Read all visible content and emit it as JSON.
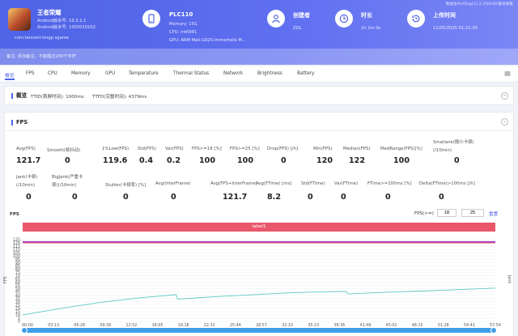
{
  "header": {
    "top_note": "数据由PerfDog(11.2.250430)版本收集",
    "app": {
      "name": "王者荣耀",
      "android_version_line": "Android版本号: 10.3.1.1",
      "android_build_line": "Android版本号: 1003010102",
      "package": "com.tencent.tmgp.sgame"
    },
    "device": {
      "model": "PLC110",
      "memory": "Memory: 15G",
      "cpu": "CPU: mt6991",
      "gpu": "GPU: ARM Mali-G925-Immortalis M..."
    },
    "creator": {
      "label": "创建者",
      "value": "ZOL"
    },
    "duration": {
      "label": "时长",
      "value": "1h 1m 0s"
    },
    "upload": {
      "label": "上传时间",
      "value": "11/05/2025 01:22:30"
    },
    "remark": "备注: 添加备注，不能超过200个字符"
  },
  "tabs": [
    {
      "label": "概览",
      "active": true
    },
    {
      "label": "FPS",
      "active": false
    },
    {
      "label": "CPU",
      "active": false
    },
    {
      "label": "Memory",
      "active": false
    },
    {
      "label": "GPU",
      "active": false
    },
    {
      "label": "Temperature",
      "active": false
    },
    {
      "label": "Thermal Status",
      "active": false
    },
    {
      "label": "Network",
      "active": false
    },
    {
      "label": "Brightness",
      "active": false
    },
    {
      "label": "Battery",
      "active": false
    }
  ],
  "overview": {
    "title": "概览",
    "ttid": "TTID(首屏时间): 1000ms",
    "ttfd": "TTFD(完整时间): 4379ms"
  },
  "fps_section": {
    "title": "FPS",
    "row1": [
      {
        "label": "Avg(FPS)",
        "value": "121.7"
      },
      {
        "label": "Smooth(帧抖动)",
        "value": "0"
      },
      {
        "label": "1%Low(FPS)",
        "value": "119.6"
      },
      {
        "label": "Std(FPS)",
        "value": "0.4"
      },
      {
        "label": "Var(FPS)",
        "value": "0.2"
      },
      {
        "label": "FPS>=18 [%]",
        "value": "100"
      },
      {
        "label": "FPS>=25 [%]",
        "value": "100"
      },
      {
        "label": "Drop(FPS) [/h]",
        "value": "0"
      },
      {
        "label": "Min(FPS)",
        "value": "120"
      },
      {
        "label": "Median(FPS)",
        "value": "122"
      },
      {
        "label": "MedRange(FPS)[%]",
        "value": "100"
      },
      {
        "label": "Smallank(微小卡顿)(/10min)",
        "value": "0"
      }
    ],
    "row2": [
      {
        "label": "Jank(卡顿)(/10min)",
        "value": "0"
      },
      {
        "label": "BigJank(严重卡顿)(/10min)",
        "value": "0"
      },
      {
        "label": "Stutter(卡顿率) [%]",
        "value": "0"
      },
      {
        "label": "Avg(InterFrame)",
        "value": "0"
      },
      {
        "label": "Avg(FPS+InterFrame)",
        "value": "121.7"
      },
      {
        "label": "Avg(FTime) [ms]",
        "value": "8.2"
      },
      {
        "label": "Std(FTime)",
        "value": "0"
      },
      {
        "label": "Var(FTime)",
        "value": "0"
      },
      {
        "label": "FTime>=100ms [%]",
        "value": "0"
      },
      {
        "label": "Delta(FTime)>100ms [/h]",
        "value": "0"
      }
    ]
  },
  "chart_controls": {
    "title": "FPS",
    "threshold_label": "FPS(>=)",
    "threshold_1": "18",
    "threshold_2": "25",
    "reset_label": "重置",
    "label_bar": "label1"
  },
  "chart_data": {
    "type": "line",
    "title": "FPS",
    "ylabel": "FPS",
    "y2label": "Jank",
    "ylim": [
      0,
      125
    ],
    "y_ticks": [
      "125",
      "120",
      "115",
      "110",
      "105",
      "100",
      "95",
      "90",
      "85",
      "80",
      "75",
      "70",
      "65",
      "60",
      "55",
      "50",
      "45",
      "40",
      "35",
      "30",
      "25",
      "20",
      "15",
      "10",
      "5",
      "0"
    ],
    "x_ticks": [
      "00:00",
      "03:13",
      "06:26",
      "09:39",
      "12:52",
      "16:05",
      "19:18",
      "22:31",
      "25:44",
      "28:57",
      "32:10",
      "35:23",
      "38:36",
      "41:49",
      "45:02",
      "48:15",
      "51:28",
      "54:41",
      "57:54"
    ],
    "series": [
      {
        "name": "FPS",
        "color": "#9b3fbf",
        "x_minutes": [
          0,
          10,
          20,
          30,
          40,
          50,
          61
        ],
        "values": [
          121.7,
          121.7,
          121.6,
          121.7,
          121.7,
          121.7,
          121.7
        ]
      },
      {
        "name": "",
        "color": "#e8576a",
        "x_minutes": [
          0,
          61
        ],
        "values": [
          120,
          120
        ]
      },
      {
        "color": "#5cc9c0",
        "x_minutes": [
          0,
          5,
          10,
          15,
          19.8,
          20,
          25,
          30,
          35,
          41.7,
          42,
          48,
          55,
          61
        ],
        "values": [
          10,
          20,
          29,
          36,
          41,
          34,
          38,
          41,
          44,
          46,
          42,
          45,
          48,
          51
        ]
      }
    ]
  },
  "colors": {
    "accent": "#4e63e6",
    "label_bar": "#e8576a",
    "scrollbar": "#3f9fe8"
  }
}
